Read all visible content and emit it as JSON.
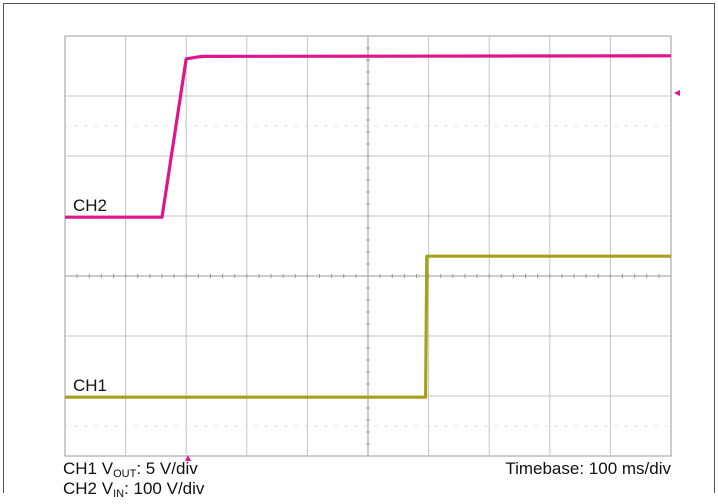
{
  "chart_data": {
    "type": "line",
    "x_unit": "ms",
    "x_divisions": 10,
    "y_divisions": 7,
    "x_per_division": 100,
    "xlim": [
      0,
      1000
    ],
    "ylim": [
      0,
      7
    ],
    "series": [
      {
        "name": "CH2",
        "color": "#e0148c",
        "x": [
          0,
          160,
          200,
          225,
          1000
        ],
        "y": [
          3.98,
          3.98,
          6.62,
          6.66,
          6.67
        ]
      },
      {
        "name": "CH1",
        "color": "#a6a01a",
        "x": [
          0,
          595,
          597,
          1000
        ],
        "y": [
          0.98,
          0.98,
          3.33,
          3.33
        ]
      }
    ],
    "channel_labels": [
      "CH2",
      "CH1"
    ],
    "trigger_marker_color": "#e0148c"
  },
  "captions": {
    "ch1_prefix": "CH1 V",
    "ch1_sub": "OUT",
    "ch1_suffix": ": 5 V/div",
    "ch2_prefix": "CH2 V",
    "ch2_sub": "IN",
    "ch2_suffix": ": 100 V/div",
    "timebase": "Timebase: 100 ms/div"
  }
}
